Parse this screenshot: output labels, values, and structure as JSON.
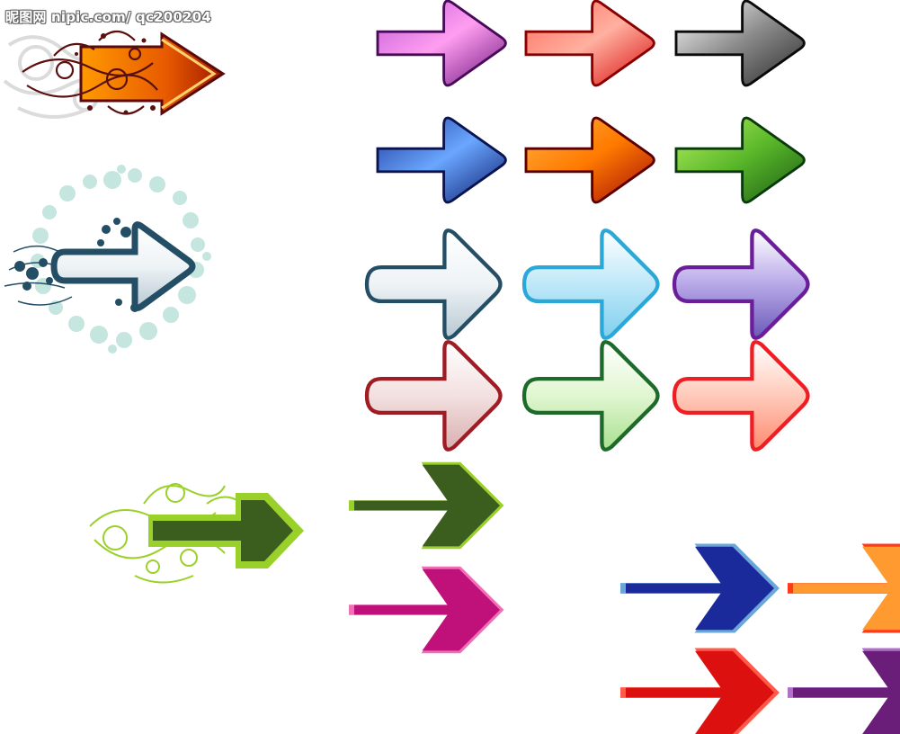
{
  "watermark": {
    "text": "昵图网 nipic.com/ qc200204"
  },
  "palette": {
    "purple": "#8a1fa0",
    "red": "#ff1a1a",
    "silver": "#c9c9c9",
    "navy": "#1f3d9a",
    "orange": "#ff8a00",
    "darkred": "#b01515",
    "green": "#3aa020",
    "slate": "#244e66",
    "cyan": "#2aa8d8",
    "violet": "#6a1e9a",
    "maroon": "#a01c24",
    "forest": "#1e6a2a",
    "scarlet": "#ee1e24",
    "olive": "#3b5e1e",
    "lime": "#9ad02a",
    "magenta": "#e0188a",
    "blue": "#1a2a9a",
    "lightblue": "#6aa6d8"
  },
  "icons": [
    "ornate-arrow-icon",
    "bubble-arrow-icon",
    "swirl-arrow-icon",
    "glossy-arrow-icon",
    "rounded-arrow-icon",
    "flat-arrow-icon"
  ]
}
